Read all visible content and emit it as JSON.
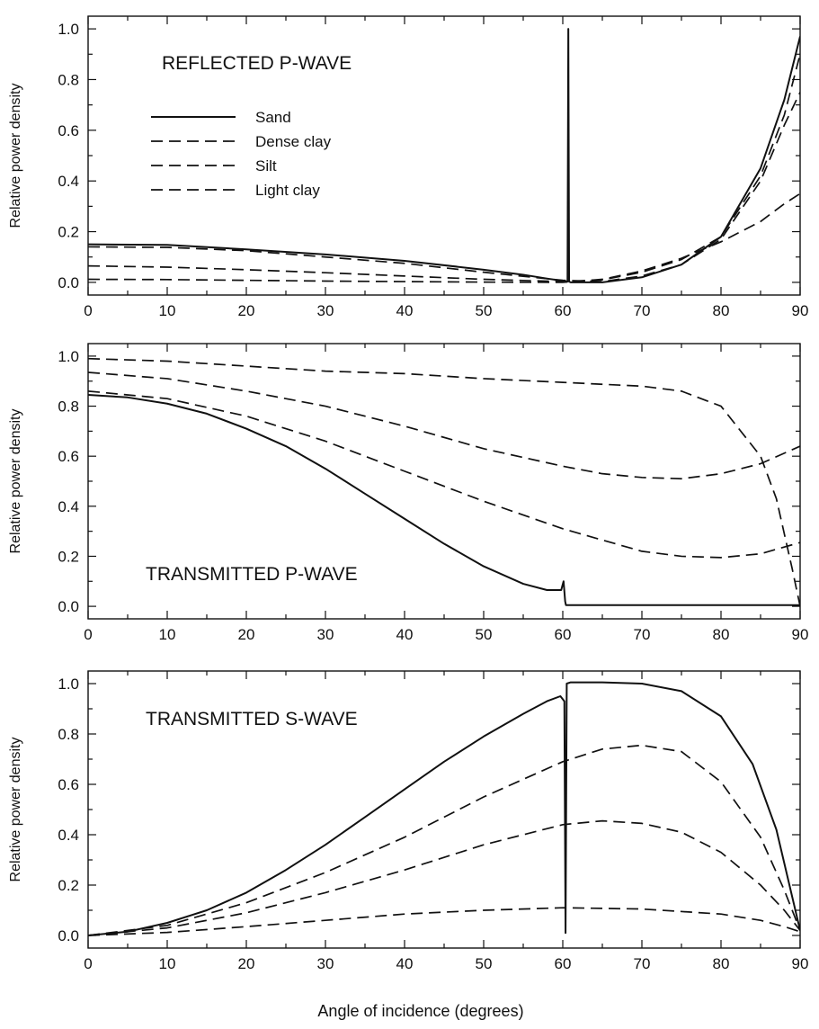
{
  "chart_data": [
    {
      "type": "line",
      "title": "REFLECTED P-WAVE",
      "xlabel": "",
      "ylabel": "Relative power density",
      "xlim": [
        0,
        90
      ],
      "ylim": [
        -0.05,
        1.05
      ],
      "xticks": [
        0,
        10,
        20,
        30,
        40,
        50,
        60,
        70,
        80,
        90
      ],
      "yticks": [
        0.0,
        0.2,
        0.4,
        0.6,
        0.8,
        1.0
      ],
      "grid": false,
      "legend": "upper-left",
      "series": [
        {
          "name": "Sand",
          "style": "solid",
          "x": [
            0,
            10,
            20,
            30,
            40,
            50,
            55,
            58,
            60,
            60.6,
            60.7,
            60.8,
            61,
            65,
            70,
            75,
            80,
            85,
            88,
            90
          ],
          "y": [
            0.15,
            0.148,
            0.13,
            0.11,
            0.085,
            0.05,
            0.03,
            0.015,
            0.006,
            0.003,
            1.0,
            0.003,
            0.0,
            0.0,
            0.02,
            0.07,
            0.18,
            0.45,
            0.72,
            0.97
          ]
        },
        {
          "name": "Dense clay",
          "style": "dashed",
          "x": [
            0,
            10,
            20,
            30,
            40,
            50,
            60,
            65,
            70,
            75,
            80,
            85,
            88,
            90
          ],
          "y": [
            0.14,
            0.138,
            0.125,
            0.1,
            0.075,
            0.04,
            0.008,
            0.003,
            0.025,
            0.07,
            0.17,
            0.4,
            0.62,
            0.75
          ]
        },
        {
          "name": "Silt",
          "style": "dashed",
          "x": [
            0,
            10,
            20,
            30,
            40,
            50,
            60,
            65,
            70,
            75,
            80,
            85,
            88,
            90
          ],
          "y": [
            0.065,
            0.06,
            0.05,
            0.038,
            0.025,
            0.012,
            0.003,
            0.01,
            0.04,
            0.09,
            0.18,
            0.42,
            0.66,
            0.9
          ]
        },
        {
          "name": "Light clay",
          "style": "dashed",
          "x": [
            0,
            10,
            20,
            30,
            40,
            50,
            60,
            65,
            70,
            75,
            80,
            85,
            88,
            90
          ],
          "y": [
            0.012,
            0.011,
            0.008,
            0.005,
            0.003,
            0.001,
            0.0,
            0.012,
            0.045,
            0.095,
            0.16,
            0.24,
            0.31,
            0.35
          ]
        }
      ]
    },
    {
      "type": "line",
      "title": "TRANSMITTED P-WAVE",
      "xlabel": "",
      "ylabel": "Relative power density",
      "xlim": [
        0,
        90
      ],
      "ylim": [
        -0.05,
        1.05
      ],
      "xticks": [
        0,
        10,
        20,
        30,
        40,
        50,
        60,
        70,
        80,
        90
      ],
      "yticks": [
        0.0,
        0.2,
        0.4,
        0.6,
        0.8,
        1.0
      ],
      "grid": false,
      "series": [
        {
          "name": "Sand",
          "style": "solid",
          "x": [
            0,
            5,
            10,
            15,
            20,
            25,
            30,
            35,
            40,
            45,
            50,
            55,
            58,
            59.8,
            60.1,
            60.3,
            60.4,
            61,
            70,
            80,
            90
          ],
          "y": [
            0.845,
            0.835,
            0.81,
            0.77,
            0.71,
            0.64,
            0.55,
            0.45,
            0.35,
            0.25,
            0.16,
            0.09,
            0.065,
            0.065,
            0.1,
            0.02,
            0.005,
            0.005,
            0.005,
            0.005,
            0.005
          ]
        },
        {
          "name": "Dense clay",
          "style": "dashed",
          "x": [
            0,
            10,
            20,
            30,
            40,
            50,
            60,
            70,
            75,
            80,
            85,
            87,
            89,
            90
          ],
          "y": [
            0.99,
            0.98,
            0.96,
            0.94,
            0.93,
            0.91,
            0.895,
            0.88,
            0.86,
            0.8,
            0.6,
            0.43,
            0.15,
            0.0
          ]
        },
        {
          "name": "Silt",
          "style": "dashed",
          "x": [
            0,
            10,
            20,
            30,
            40,
            50,
            60,
            65,
            70,
            75,
            80,
            85,
            90
          ],
          "y": [
            0.935,
            0.91,
            0.86,
            0.8,
            0.72,
            0.63,
            0.56,
            0.53,
            0.515,
            0.51,
            0.53,
            0.57,
            0.64
          ]
        },
        {
          "name": "Light clay",
          "style": "dashed",
          "x": [
            0,
            10,
            20,
            30,
            40,
            50,
            60,
            70,
            75,
            80,
            85,
            90
          ],
          "y": [
            0.86,
            0.83,
            0.76,
            0.66,
            0.54,
            0.42,
            0.31,
            0.22,
            0.2,
            0.195,
            0.21,
            0.255
          ]
        }
      ]
    },
    {
      "type": "line",
      "title": "TRANSMITTED S-WAVE",
      "xlabel": "Angle of incidence (degrees)",
      "ylabel": "Relative power density",
      "xlim": [
        0,
        90
      ],
      "ylim": [
        -0.05,
        1.05
      ],
      "xticks": [
        0,
        10,
        20,
        30,
        40,
        50,
        60,
        70,
        80,
        90
      ],
      "yticks": [
        0.0,
        0.2,
        0.4,
        0.6,
        0.8,
        1.0
      ],
      "grid": false,
      "series": [
        {
          "name": "Sand",
          "style": "solid",
          "x": [
            0,
            5,
            10,
            15,
            20,
            25,
            30,
            35,
            40,
            45,
            50,
            55,
            58,
            59.7,
            60.2,
            60.35,
            60.5,
            61,
            65,
            70,
            75,
            80,
            84,
            87,
            90
          ],
          "y": [
            0.0,
            0.015,
            0.05,
            0.1,
            0.17,
            0.26,
            0.36,
            0.47,
            0.58,
            0.69,
            0.79,
            0.88,
            0.93,
            0.95,
            0.93,
            0.01,
            1.0,
            1.005,
            1.005,
            1.0,
            0.97,
            0.87,
            0.68,
            0.42,
            0.02
          ]
        },
        {
          "name": "Dense clay",
          "style": "dashed",
          "x": [
            0,
            10,
            20,
            30,
            40,
            50,
            60,
            65,
            70,
            75,
            80,
            85,
            88,
            90
          ],
          "y": [
            0.0,
            0.04,
            0.13,
            0.25,
            0.39,
            0.55,
            0.69,
            0.74,
            0.755,
            0.73,
            0.61,
            0.39,
            0.18,
            0.02
          ]
        },
        {
          "name": "Silt",
          "style": "dashed",
          "x": [
            0,
            10,
            20,
            30,
            40,
            50,
            60,
            65,
            70,
            75,
            80,
            85,
            88,
            90
          ],
          "y": [
            0.0,
            0.03,
            0.09,
            0.17,
            0.26,
            0.36,
            0.44,
            0.455,
            0.445,
            0.41,
            0.33,
            0.2,
            0.1,
            0.02
          ]
        },
        {
          "name": "Light clay",
          "style": "dashed",
          "x": [
            0,
            10,
            20,
            30,
            40,
            50,
            60,
            70,
            80,
            85,
            88,
            90
          ],
          "y": [
            0.0,
            0.012,
            0.035,
            0.06,
            0.085,
            0.1,
            0.11,
            0.105,
            0.085,
            0.06,
            0.035,
            0.015
          ]
        }
      ]
    }
  ]
}
